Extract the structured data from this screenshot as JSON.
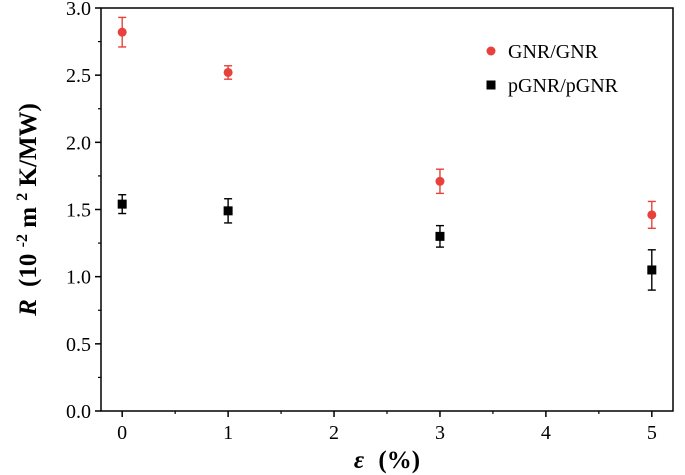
{
  "chart_data": {
    "type": "scatter",
    "xlabel": {
      "symbol": "ε",
      "unit": "(%)"
    },
    "ylabel": {
      "symbol": "R",
      "unit_open": "(10",
      "exp1": "-2",
      "unit_mid": " m",
      "exp2": "2",
      "unit_close": "K/MW)"
    },
    "xlim": [
      -0.2,
      5.2
    ],
    "ylim": [
      0.0,
      3.0
    ],
    "xticks": [
      0,
      1,
      2,
      3,
      4,
      5
    ],
    "xtick_labels": [
      "0",
      "1",
      "2",
      "3",
      "4",
      "5"
    ],
    "yticks": [
      0.0,
      0.5,
      1.0,
      1.5,
      2.0,
      2.5,
      3.0
    ],
    "ytick_labels": [
      "0.0",
      "0.5",
      "1.0",
      "1.5",
      "2.0",
      "2.5",
      "3.0"
    ],
    "grid": false,
    "legend_position": "top-right",
    "series": [
      {
        "name": "GNR/GNR",
        "color": "#e8403a",
        "marker": "circle",
        "x": [
          0,
          1,
          3,
          5
        ],
        "y": [
          2.82,
          2.52,
          1.71,
          1.46
        ],
        "yerr": [
          0.11,
          0.05,
          0.09,
          0.1
        ]
      },
      {
        "name": "pGNR/pGNR",
        "color": "#000000",
        "marker": "square",
        "x": [
          0,
          1,
          3,
          5
        ],
        "y": [
          1.54,
          1.49,
          1.3,
          1.05
        ],
        "yerr": [
          0.07,
          0.09,
          0.08,
          0.15
        ]
      }
    ]
  }
}
